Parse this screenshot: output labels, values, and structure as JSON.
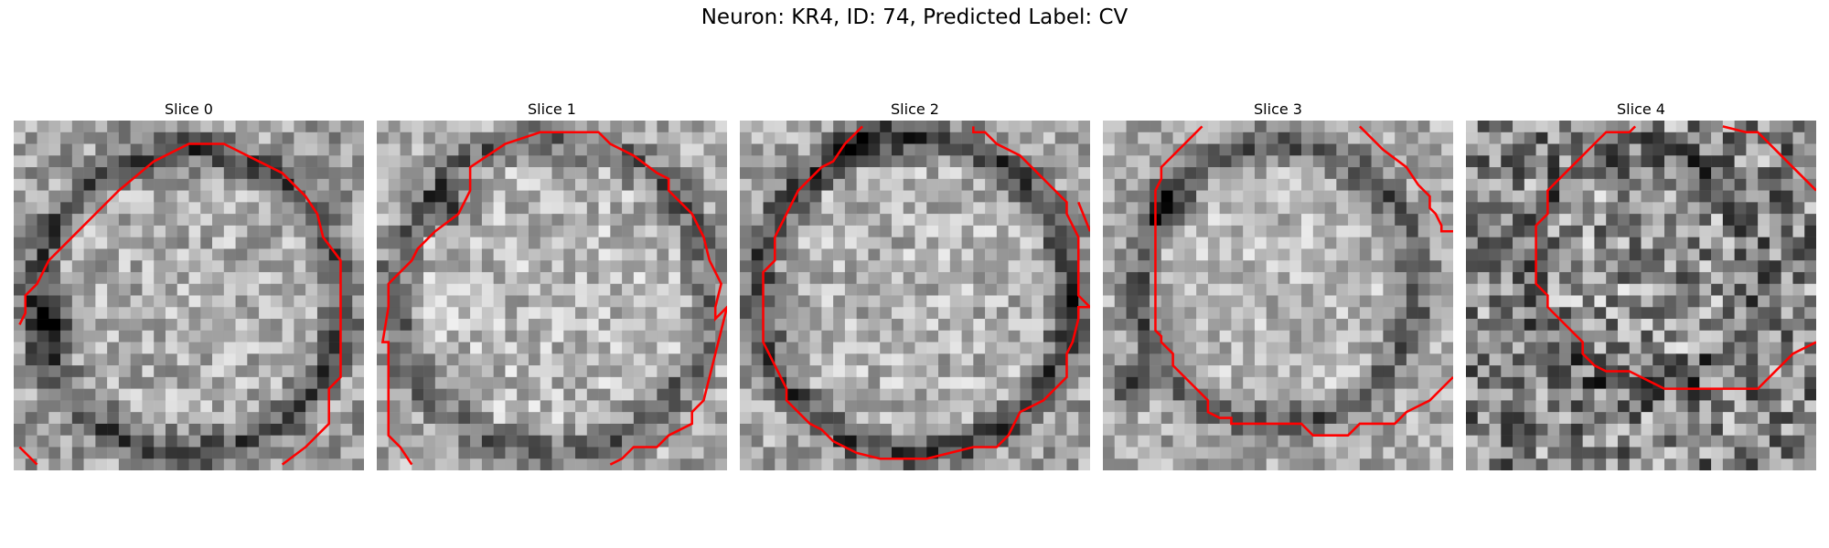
{
  "figure": {
    "title": "Neuron: KR4, ID: 74, Predicted Label: CV"
  },
  "colors": {
    "contour": "#ff0000",
    "background": "#ffffff"
  },
  "panels": [
    {
      "title": "Slice 0"
    },
    {
      "title": "Slice 1"
    },
    {
      "title": "Slice 2"
    },
    {
      "title": "Slice 3"
    },
    {
      "title": "Slice 4"
    }
  ]
}
